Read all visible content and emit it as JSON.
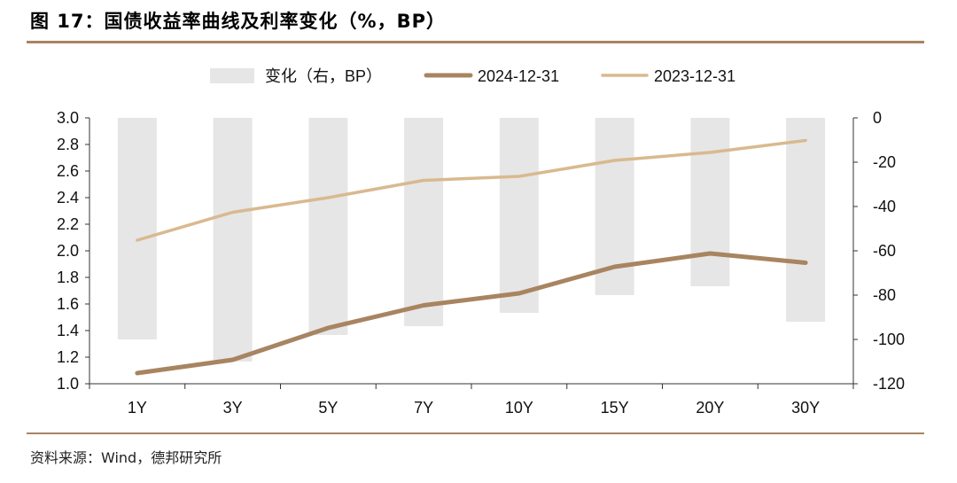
{
  "title": "图 17：国债收益率曲线及利率变化（%，BP）",
  "source": "资料来源：Wind，德邦研究所",
  "colors": {
    "accent": "#a88460",
    "bar": "#e6e6e6",
    "series_2024": "#a88460",
    "series_2023": "#d9b98f"
  },
  "chart_data": {
    "type": "line",
    "categories": [
      "1Y",
      "3Y",
      "5Y",
      "7Y",
      "10Y",
      "15Y",
      "20Y",
      "30Y"
    ],
    "series": [
      {
        "name": "变化（右，BP）",
        "type": "bar",
        "axis": "right",
        "values": [
          -100,
          -110,
          -98,
          -94,
          -88,
          -80,
          -76,
          -92
        ]
      },
      {
        "name": "2024-12-31",
        "type": "line",
        "axis": "left",
        "values": [
          1.08,
          1.18,
          1.42,
          1.59,
          1.68,
          1.88,
          1.98,
          1.91
        ]
      },
      {
        "name": "2023-12-31",
        "type": "line",
        "axis": "left",
        "values": [
          2.08,
          2.29,
          2.4,
          2.53,
          2.56,
          2.68,
          2.74,
          2.83
        ]
      }
    ],
    "yleft": {
      "min": 1.0,
      "max": 3.0,
      "ticks": [
        "1.0",
        "1.2",
        "1.4",
        "1.6",
        "1.8",
        "2.0",
        "2.2",
        "2.4",
        "2.6",
        "2.8",
        "3.0"
      ]
    },
    "yright": {
      "min": -120,
      "max": 0,
      "ticks": [
        "-120",
        "-100",
        "-80",
        "-60",
        "-40",
        "-20",
        "0"
      ]
    },
    "legend_position": "top-center",
    "grid": false
  }
}
